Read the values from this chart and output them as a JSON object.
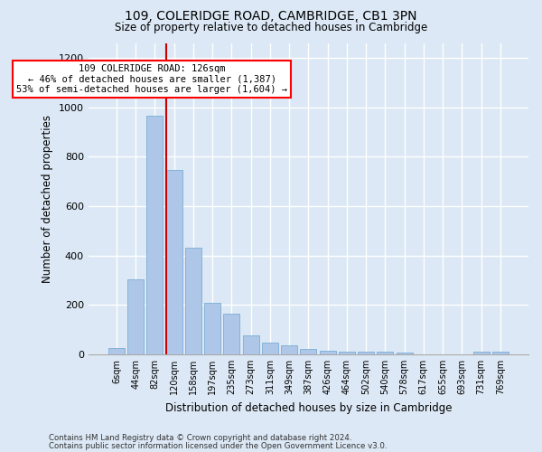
{
  "title1": "109, COLERIDGE ROAD, CAMBRIDGE, CB1 3PN",
  "title2": "Size of property relative to detached houses in Cambridge",
  "xlabel": "Distribution of detached houses by size in Cambridge",
  "ylabel": "Number of detached properties",
  "categories": [
    "6sqm",
    "44sqm",
    "82sqm",
    "120sqm",
    "158sqm",
    "197sqm",
    "235sqm",
    "273sqm",
    "311sqm",
    "349sqm",
    "387sqm",
    "426sqm",
    "464sqm",
    "502sqm",
    "540sqm",
    "578sqm",
    "617sqm",
    "655sqm",
    "693sqm",
    "731sqm",
    "769sqm"
  ],
  "values": [
    25,
    305,
    965,
    745,
    430,
    210,
    165,
    75,
    48,
    35,
    20,
    15,
    12,
    10,
    10,
    8,
    0,
    0,
    0,
    10,
    12
  ],
  "bar_color": "#aec6e8",
  "bar_edge_color": "#7aaed4",
  "vline_color": "#cc0000",
  "annotation_text": "109 COLERIDGE ROAD: 126sqm\n← 46% of detached houses are smaller (1,387)\n53% of semi-detached houses are larger (1,604) →",
  "ylim": [
    0,
    1260
  ],
  "yticks": [
    0,
    200,
    400,
    600,
    800,
    1000,
    1200
  ],
  "footer1": "Contains HM Land Registry data © Crown copyright and database right 2024.",
  "footer2": "Contains public sector information licensed under the Open Government Licence v3.0.",
  "bg_color": "#dce8f5",
  "grid_color": "#ffffff"
}
